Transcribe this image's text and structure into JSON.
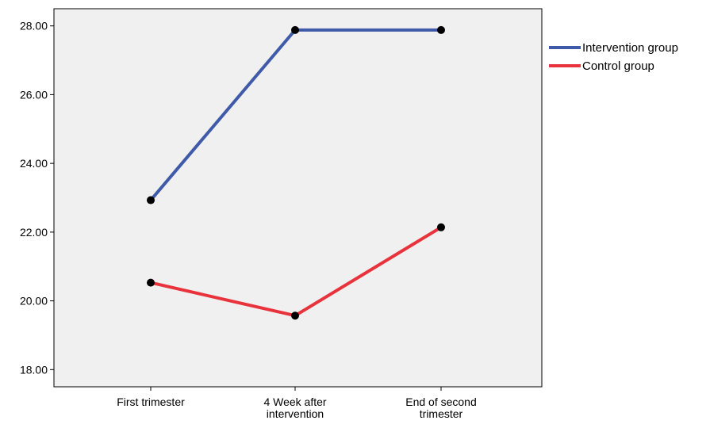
{
  "chart_data": {
    "type": "line",
    "categories": [
      [
        "First trimester"
      ],
      [
        "4 Week after",
        "intervention"
      ],
      [
        "End of second",
        "trimester"
      ]
    ],
    "series": [
      {
        "name": "Intervention group",
        "color": "#3f5aa8",
        "values": [
          22.93,
          27.88,
          27.88
        ]
      },
      {
        "name": "Control group",
        "color": "#e8333c",
        "values": [
          20.53,
          19.57,
          22.14
        ]
      }
    ],
    "ylim": [
      17.5,
      28.5
    ],
    "yticks": [
      "18.00",
      "20.00",
      "22.00",
      "24.00",
      "26.00",
      "28.00"
    ],
    "xlabel": "",
    "ylabel": "",
    "title": "",
    "grid": false,
    "legend_position": "right",
    "plot_background": "#f0f0f0",
    "marker_color": "#000000"
  }
}
